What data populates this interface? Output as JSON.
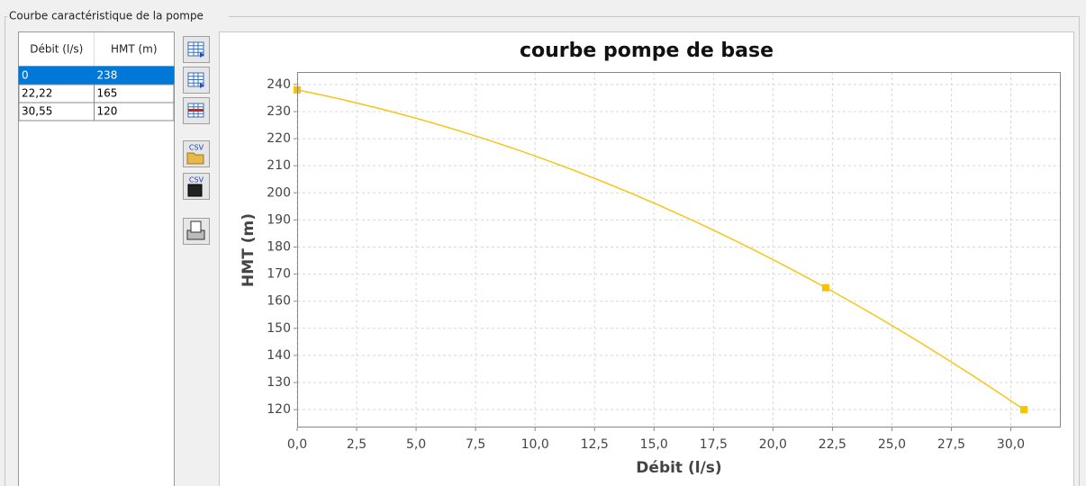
{
  "group_title": "Courbe caractéristique de la pompe",
  "table": {
    "headers": [
      "Débit (l/s)",
      "HMT (m)"
    ],
    "rows": [
      [
        "0",
        "238"
      ],
      [
        "22,22",
        "165"
      ],
      [
        "30,55",
        "120"
      ]
    ]
  },
  "icon_labels": [
    "CSV",
    "CSV"
  ],
  "chart_data": {
    "type": "line",
    "title": "courbe pompe de base",
    "xlabel": "Débit (l/s)",
    "ylabel": "HMT (m)",
    "x": [
      0,
      22.22,
      30.55
    ],
    "series": [
      {
        "color": "#f5c518",
        "marker_color": "#f7c200",
        "values": [
          238,
          165,
          120
        ]
      }
    ],
    "marker": "square",
    "xlim": [
      0,
      32.1
    ],
    "ylim": [
      113.4,
      244.6
    ],
    "xticks": [
      {
        "value": 0,
        "label": "0,0"
      },
      {
        "value": 2.5,
        "label": "2,5"
      },
      {
        "value": 5,
        "label": "5,0"
      },
      {
        "value": 7.5,
        "label": "7,5"
      },
      {
        "value": 10,
        "label": "10,0"
      },
      {
        "value": 12.5,
        "label": "12,5"
      },
      {
        "value": 15,
        "label": "15,0"
      },
      {
        "value": 17.5,
        "label": "17,5"
      },
      {
        "value": 20,
        "label": "20,0"
      },
      {
        "value": 22.5,
        "label": "22,5"
      },
      {
        "value": 25,
        "label": "25,0"
      },
      {
        "value": 27.5,
        "label": "27,5"
      },
      {
        "value": 30,
        "label": "30,0"
      }
    ],
    "yticks": [
      120,
      130,
      140,
      150,
      160,
      170,
      180,
      190,
      200,
      210,
      220,
      230,
      240
    ],
    "grid": true
  }
}
